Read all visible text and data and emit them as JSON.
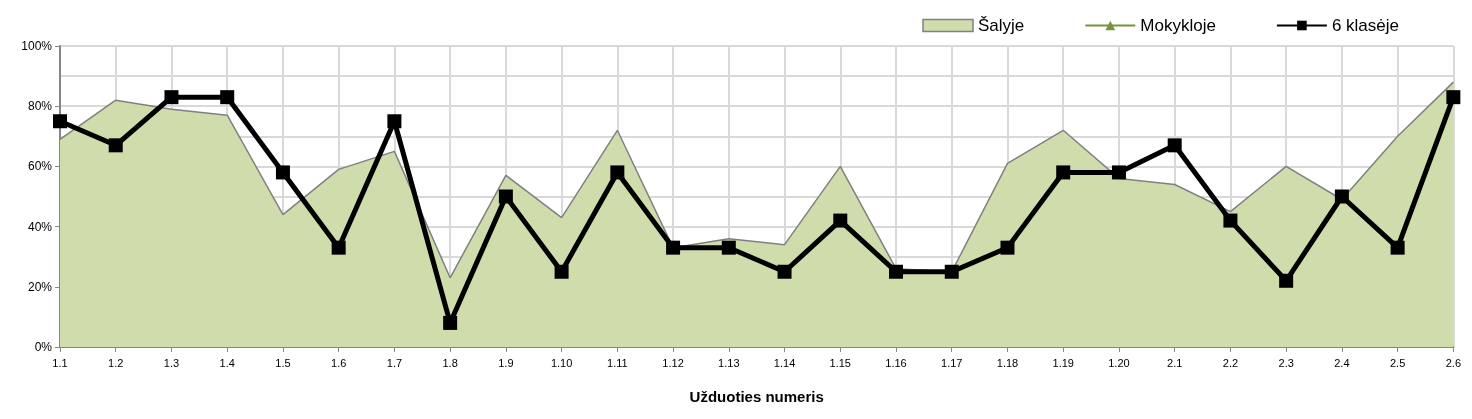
{
  "chart_data": {
    "type": "line",
    "xlabel": "Užduoties numeris",
    "categories": [
      "1.1",
      "1.2",
      "1.3",
      "1.4",
      "1.5",
      "1.6",
      "1.7",
      "1.8",
      "1.9",
      "1.10",
      "1.11",
      "1.12",
      "1.13",
      "1.14",
      "1.15",
      "1.16",
      "1.17",
      "1.18",
      "1.19",
      "1.20",
      "2.1",
      "2.2",
      "2.3",
      "2.4",
      "2.5",
      "2.6"
    ],
    "series": [
      {
        "name": "Šalyje",
        "type": "area",
        "color": "#cfddac",
        "marker": "none",
        "values": [
          69,
          82,
          79,
          77,
          44,
          59,
          65,
          23,
          57,
          43,
          72,
          33,
          36,
          34,
          60,
          26,
          25,
          61,
          72,
          56,
          54,
          45,
          60,
          49,
          70,
          88
        ]
      },
      {
        "name": "Mokykloje",
        "color": "#77933c",
        "marker": "triangle",
        "values": [
          null,
          null,
          null,
          null,
          null,
          null,
          null,
          null,
          null,
          null,
          null,
          null,
          null,
          null,
          null,
          null,
          null,
          null,
          null,
          null,
          null,
          null,
          null,
          null,
          null,
          null
        ]
      },
      {
        "name": "6 klasėje",
        "color": "#000000",
        "marker": "square",
        "values": [
          75,
          67,
          83,
          83,
          58,
          33,
          75,
          8,
          50,
          25,
          58,
          33,
          33,
          25,
          42,
          25,
          25,
          33,
          58,
          58,
          67,
          42,
          22,
          50,
          33,
          83
        ]
      }
    ],
    "ylim": [
      0,
      100
    ],
    "yticks": [
      {
        "value": 0,
        "label": "0%"
      },
      {
        "value": 20,
        "label": "20%"
      },
      {
        "value": 40,
        "label": "40%"
      },
      {
        "value": 60,
        "label": "60%"
      },
      {
        "value": 80,
        "label": "80%"
      },
      {
        "value": 100,
        "label": "100%"
      }
    ],
    "grid": true,
    "legend": "top right"
  }
}
